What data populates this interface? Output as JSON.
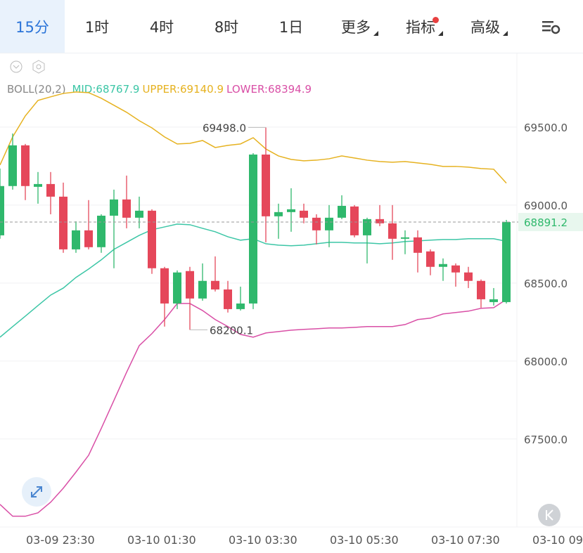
{
  "tabs": [
    "15分",
    "1时",
    "4时",
    "8时",
    "1日",
    "更多",
    "指标",
    "高级"
  ],
  "chart_data": {
    "type": "candlestick",
    "indicator": "BOLL(20,2)",
    "ylim": [
      66936,
      69977
    ],
    "yticks": [
      {
        "value": 69500,
        "label": "69500.0"
      },
      {
        "value": 69000,
        "label": "69000.0"
      },
      {
        "value": 68500,
        "label": "68500.0"
      },
      {
        "value": 68000,
        "label": "68000.0"
      },
      {
        "value": 67500,
        "label": "67500.0"
      }
    ],
    "grid": true,
    "xticks": [
      {
        "value": 5,
        "label": "03-09 23:30"
      },
      {
        "value": 13,
        "label": "03-10 01:30"
      },
      {
        "value": 21,
        "label": "03-10 03:30"
      },
      {
        "value": 29,
        "label": "03-10 05:30"
      },
      {
        "value": 37,
        "label": "03-10 07:30"
      },
      {
        "value": 45,
        "label": "03-10 09"
      }
    ],
    "colors": {
      "up": "#2fb86c",
      "down": "#e5475a"
    },
    "open": [
      68806,
      69122,
      69383,
      69117,
      69135,
      69054,
      68716,
      68838,
      68730,
      68932,
      69036,
      68919,
      68964,
      68595,
      68369,
      68577,
      68401,
      68514,
      68459,
      68333,
      68369,
      69324,
      68928,
      68955,
      68964,
      68919,
      68838,
      68919,
      68991,
      68806,
      68910,
      68883,
      68784,
      68793,
      68703,
      68604,
      68613,
      68568,
      68514,
      68378,
      68378
    ],
    "high": [
      69234,
      69459,
      69392,
      69212,
      69212,
      69144,
      68896,
      69032,
      68941,
      69099,
      69189,
      69054,
      68973,
      68604,
      68581,
      68604,
      68626,
      68671,
      68514,
      68477,
      69333,
      69498.0,
      69009,
      69108,
      69009,
      68941,
      69000,
      69063,
      69000,
      68919,
      69000,
      69000,
      68838,
      68838,
      68716,
      68658,
      68626,
      68604,
      68523,
      68468,
      68905
    ],
    "low": [
      68784,
      69099,
      69032,
      69009,
      68941,
      68694,
      68694,
      68716,
      68694,
      68595,
      68851,
      68851,
      68559,
      68221,
      68333,
      68200.1,
      68387,
      68446,
      68311,
      68324,
      68333,
      68761,
      68784,
      68829,
      68883,
      68748,
      68730,
      68910,
      68793,
      68626,
      68865,
      68649,
      68685,
      68568,
      68550,
      68514,
      68477,
      68468,
      68342,
      68356,
      68369
    ],
    "close": [
      69122,
      69383,
      69122,
      69135,
      69054,
      68716,
      68838,
      68730,
      68932,
      69036,
      68919,
      68964,
      68595,
      68369,
      68568,
      68401,
      68514,
      68459,
      68333,
      68369,
      69324,
      68928,
      68955,
      68973,
      68919,
      68838,
      68919,
      68995,
      68806,
      68910,
      68883,
      68784,
      68793,
      68694,
      68604,
      68622,
      68568,
      68514,
      68396,
      68396,
      68891.2
    ],
    "last_label": "68891.2",
    "high_label": "69498.0",
    "low_label": "68200.1",
    "series": [
      {
        "name": "MID",
        "legend": "MID:68767.9",
        "color": "#3cc6a6",
        "values": [
          68153,
          68221,
          68288,
          68356,
          68423,
          68468,
          68536,
          68590,
          68649,
          68716,
          68761,
          68806,
          68842,
          68860,
          68878,
          68874,
          68851,
          68829,
          68797,
          68775,
          68784,
          68752,
          68743,
          68739,
          68743,
          68752,
          68761,
          68761,
          68757,
          68757,
          68752,
          68757,
          68766,
          68770,
          68775,
          68779,
          68779,
          68784,
          68784,
          68784,
          68767.9
        ]
      },
      {
        "name": "UPPER",
        "legend": "UPPER:69140.9",
        "color": "#e6b220",
        "values": [
          69257,
          69437,
          69572,
          69671,
          69694,
          69716,
          69725,
          69721,
          69685,
          69640,
          69595,
          69541,
          69495,
          69437,
          69392,
          69396,
          69414,
          69369,
          69383,
          69392,
          69432,
          69360,
          69315,
          69293,
          69284,
          69288,
          69297,
          69315,
          69302,
          69288,
          69279,
          69275,
          69279,
          69270,
          69261,
          69248,
          69248,
          69243,
          69234,
          69230,
          69140.9
        ]
      },
      {
        "name": "LOWER",
        "legend": "LOWER:68394.9",
        "color": "#d94fa6",
        "values": [
          67081,
          67005,
          67005,
          67027,
          67095,
          67185,
          67288,
          67396,
          67568,
          67748,
          67928,
          68099,
          68176,
          68266,
          68369,
          68369,
          68324,
          68266,
          68221,
          68171,
          68153,
          68180,
          68189,
          68198,
          68203,
          68207,
          68212,
          68212,
          68216,
          68221,
          68221,
          68221,
          68234,
          68266,
          68275,
          68302,
          68311,
          68320,
          68338,
          68342,
          68394.9
        ]
      }
    ]
  }
}
